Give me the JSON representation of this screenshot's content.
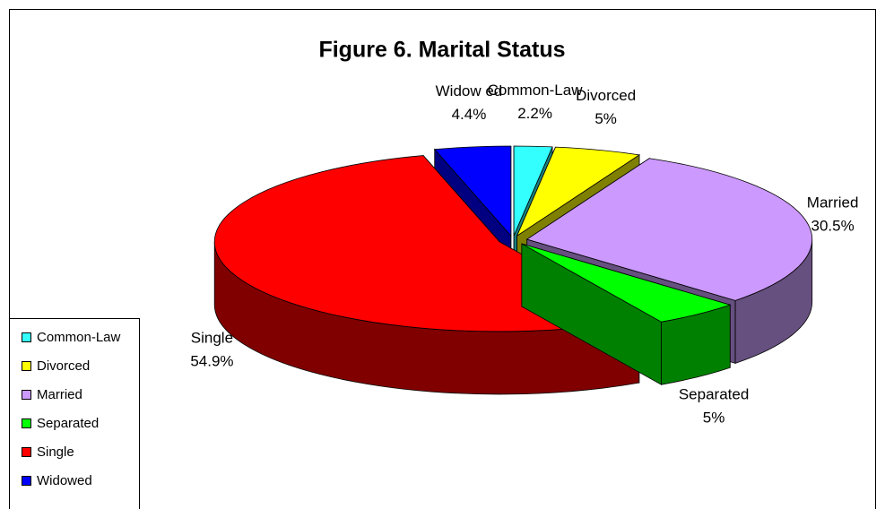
{
  "chart_data": {
    "type": "pie3d",
    "title": "Figure 6. Marital Status",
    "categories": [
      "Common-Law",
      "Divorced",
      "Married",
      "Separated",
      "Single",
      "Widowed"
    ],
    "label_names": [
      "Common-Law",
      "Divorced",
      "Married",
      "Separated",
      "Single",
      "Widow ed"
    ],
    "values": [
      2.2,
      5,
      30.5,
      5,
      54.9,
      4.4
    ],
    "value_labels": [
      "2.2%",
      "5%",
      "30.5%",
      "5%",
      "54.9%",
      "4.4%"
    ],
    "colors": [
      "#33ffff",
      "#ffff00",
      "#cc99ff",
      "#00ff00",
      "#ff0000",
      "#0000ff"
    ],
    "side_colors": [
      "#1a8080",
      "#808000",
      "#66507f",
      "#008000",
      "#800000",
      "#000080"
    ],
    "legend": "left"
  }
}
